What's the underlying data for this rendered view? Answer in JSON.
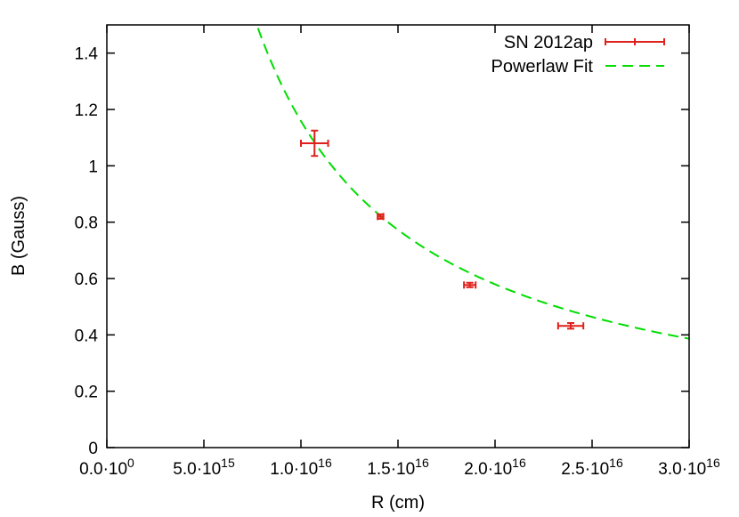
{
  "chart_data": {
    "type": "scatter",
    "title": "",
    "xlabel": "R (cm)",
    "ylabel": "B (Gauss)",
    "xlim": [
      0,
      3e+16
    ],
    "ylim": [
      0,
      1.5
    ],
    "grid": false,
    "legend_position": "top-right",
    "x_ticks": [
      {
        "value": 0,
        "mantissa": "0.0",
        "exponent": "0"
      },
      {
        "value": 5000000000000000.0,
        "mantissa": "5.0",
        "exponent": "15"
      },
      {
        "value": 1e+16,
        "mantissa": "1.0",
        "exponent": "16"
      },
      {
        "value": 1.5e+16,
        "mantissa": "1.5",
        "exponent": "16"
      },
      {
        "value": 2e+16,
        "mantissa": "2.0",
        "exponent": "16"
      },
      {
        "value": 2.5e+16,
        "mantissa": "2.5",
        "exponent": "16"
      },
      {
        "value": 3e+16,
        "mantissa": "3.0",
        "exponent": "16"
      }
    ],
    "y_ticks": [
      {
        "value": 0,
        "label": "0"
      },
      {
        "value": 0.2,
        "label": "0.2"
      },
      {
        "value": 0.4,
        "label": "0.4"
      },
      {
        "value": 0.6,
        "label": "0.6"
      },
      {
        "value": 0.8,
        "label": "0.8"
      },
      {
        "value": 1.0,
        "label": "1"
      },
      {
        "value": 1.2,
        "label": "1.2"
      },
      {
        "value": 1.4,
        "label": "1.4"
      }
    ],
    "series": [
      {
        "name": "SN 2012ap",
        "kind": "points-errorbars",
        "color": "#e0201b",
        "points": [
          {
            "x": 1.07e+16,
            "y": 1.08,
            "xerr": 700000000000000.0,
            "yerr": 0.045
          },
          {
            "x": 1.41e+16,
            "y": 0.82,
            "xerr": 150000000000000.0,
            "yerr": 0.008
          },
          {
            "x": 1.87e+16,
            "y": 0.577,
            "xerr": 300000000000000.0,
            "yerr": 0.008
          },
          {
            "x": 2.39e+16,
            "y": 0.432,
            "xerr": 650000000000000.0,
            "yerr": 0.01
          }
        ]
      },
      {
        "name": "Powerlaw Fit",
        "kind": "fit-line",
        "color": "#00dd00",
        "function": "y = A * (x / 1e16)^(-k)",
        "A": 1.159,
        "k": 1.0
      }
    ]
  }
}
